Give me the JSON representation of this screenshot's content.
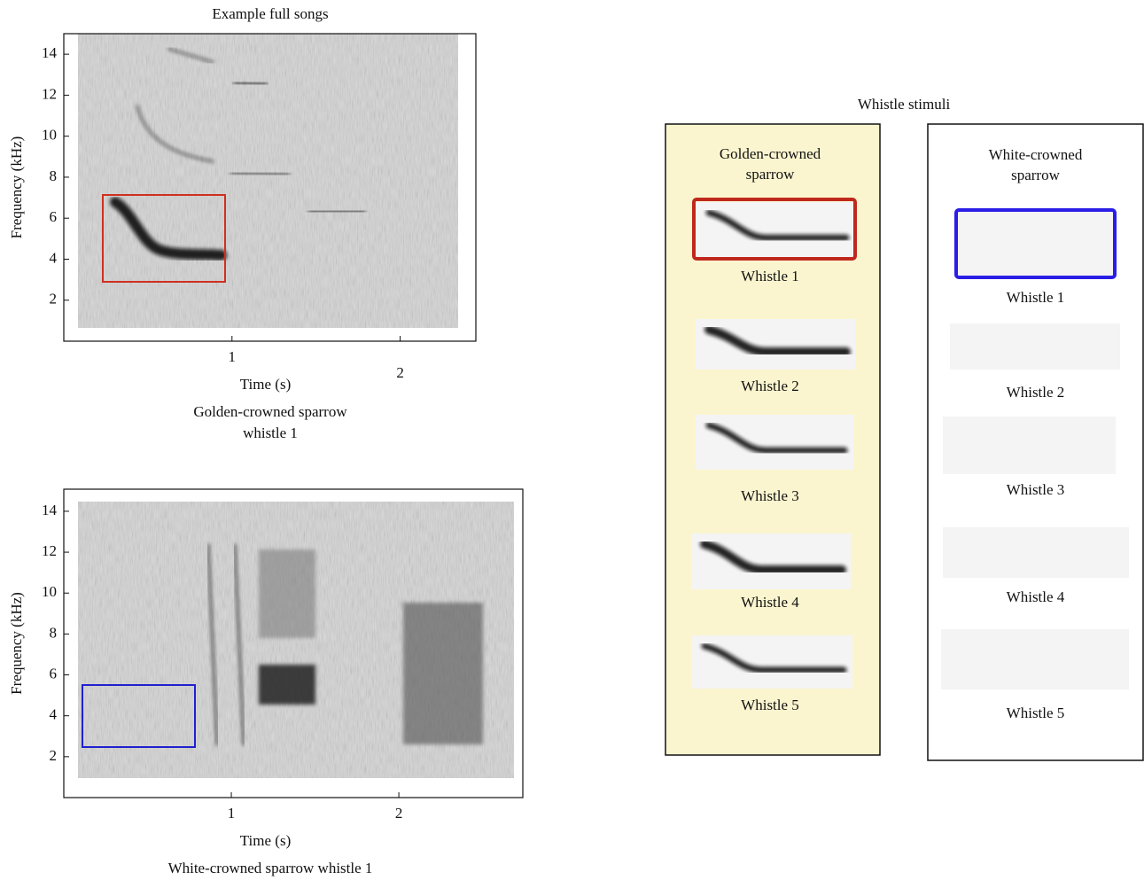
{
  "top_panel": {
    "title": "Example full songs",
    "y_label": "Frequency (kHz)",
    "x_label": "Time (s)",
    "caption": [
      "Golden-crowned sparrow",
      "whistle 1"
    ],
    "xlim": [
      0,
      2.45
    ],
    "ylim": [
      0,
      15
    ],
    "xticks": [
      1,
      2
    ],
    "yticks": [
      2,
      4,
      6,
      8,
      10,
      12,
      14
    ]
  },
  "bottom_panel": {
    "y_label": "Frequency (kHz)",
    "x_label": "Time (s)",
    "caption": [
      "White-crowned sparrow whistle 1"
    ],
    "xlim": [
      0,
      2.74
    ],
    "ylim": [
      0,
      15.08
    ],
    "xticks": [
      1,
      2
    ],
    "yticks": [
      2,
      4,
      6,
      8,
      10,
      12,
      14
    ]
  },
  "stimuli": {
    "title": "Whistle stimuli",
    "groups": [
      {
        "name": [
          "Golden-crowned",
          "sparrow"
        ],
        "whistles": [
          "Whistle 1",
          "Whistle 2",
          "Whistle 3",
          "Whistle 4",
          "Whistle 5"
        ]
      },
      {
        "name": [
          "White-crowned",
          "sparrow"
        ],
        "whistles": [
          "Whistle 1",
          "Whistle 2",
          "Whistle 3",
          "Whistle 4",
          "Whistle 5"
        ]
      }
    ]
  }
}
